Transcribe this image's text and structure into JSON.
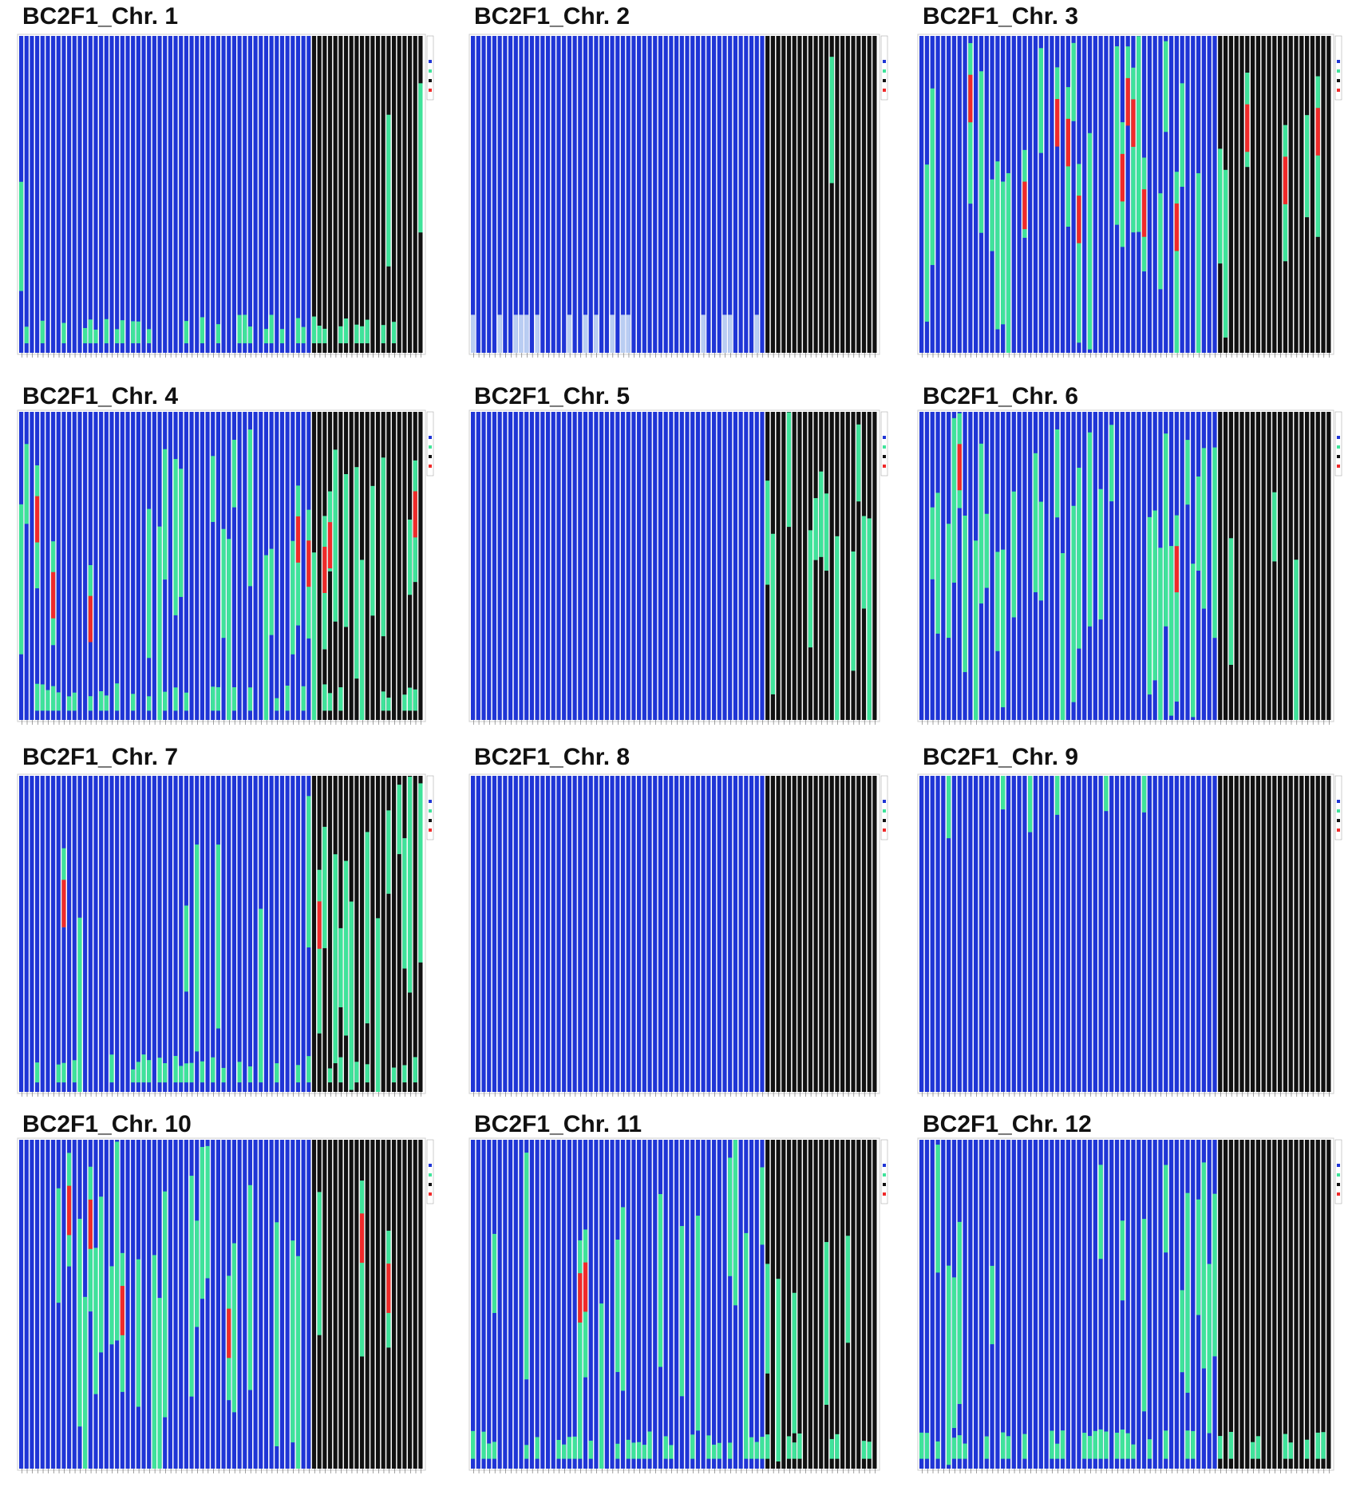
{
  "panels": [
    {
      "title": "BC2F1_Chr. 1"
    },
    {
      "title": "BC2F1_Chr. 2"
    },
    {
      "title": "BC2F1_Chr. 3"
    },
    {
      "title": "BC2F1_Chr. 4"
    },
    {
      "title": "BC2F1_Chr. 5"
    },
    {
      "title": "BC2F1_Chr. 6"
    },
    {
      "title": "BC2F1_Chr. 7"
    },
    {
      "title": "BC2F1_Chr. 8"
    },
    {
      "title": "BC2F1_Chr. 9"
    },
    {
      "title": "BC2F1_Chr. 10"
    },
    {
      "title": "BC2F1_Chr. 11"
    },
    {
      "title": "BC2F1_Chr. 12"
    }
  ]
}
